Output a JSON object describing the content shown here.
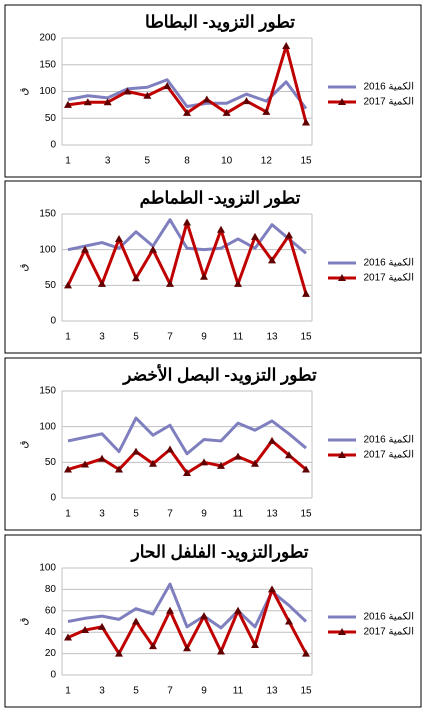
{
  "chart_data": [
    {
      "type": "line",
      "title": "تطور التزويد- البطاطا",
      "y_label": "ق",
      "categories": [
        "1",
        null,
        "3",
        null,
        "5",
        null,
        "8",
        null,
        "10",
        null,
        "12",
        null,
        "15"
      ],
      "ylim": [
        0,
        200
      ],
      "yticks": [
        0,
        50,
        100,
        150,
        200
      ],
      "series": [
        {
          "name": "الكمية 2016",
          "color": "#7f7fbf",
          "values": [
            85,
            92,
            88,
            105,
            108,
            122,
            72,
            78,
            78,
            95,
            82,
            118,
            68
          ]
        },
        {
          "name": "الكمية 2017",
          "color": "#c00000",
          "marker": "triangle",
          "values": [
            75,
            80,
            80,
            100,
            92,
            110,
            60,
            85,
            60,
            82,
            62,
            185,
            42
          ]
        }
      ]
    },
    {
      "type": "line",
      "title": "تطور التزويد- الطماطم",
      "y_label": "ق",
      "categories": [
        "1",
        null,
        "3",
        null,
        "5",
        null,
        "7",
        null,
        "9",
        null,
        "11",
        null,
        "13",
        null,
        "15"
      ],
      "ylim": [
        0,
        150
      ],
      "yticks": [
        0,
        50,
        100,
        150
      ],
      "series": [
        {
          "name": "الكمية 2016",
          "color": "#7f7fbf",
          "values": [
            100,
            105,
            110,
            102,
            125,
            105,
            142,
            102,
            100,
            102,
            115,
            102,
            135,
            115,
            95
          ]
        },
        {
          "name": "الكمية 2017",
          "color": "#c00000",
          "marker": "triangle",
          "values": [
            50,
            100,
            52,
            115,
            60,
            100,
            52,
            138,
            62,
            128,
            52,
            118,
            85,
            120,
            38
          ]
        }
      ]
    },
    {
      "type": "line",
      "title": "تطور التزويد- البصل الأخضر",
      "y_label": "ق",
      "categories": [
        "1",
        null,
        "3",
        null,
        "5",
        null,
        "7",
        null,
        "9",
        null,
        "11",
        null,
        "13",
        null,
        "15"
      ],
      "ylim": [
        0,
        150
      ],
      "yticks": [
        0,
        50,
        100,
        150
      ],
      "series": [
        {
          "name": "الكمية 2016",
          "color": "#7f7fbf",
          "values": [
            80,
            85,
            90,
            65,
            112,
            88,
            102,
            62,
            82,
            80,
            105,
            95,
            108,
            90,
            70
          ]
        },
        {
          "name": "الكمية 2017",
          "color": "#c00000",
          "marker": "triangle",
          "values": [
            40,
            47,
            55,
            40,
            65,
            48,
            68,
            35,
            50,
            45,
            58,
            48,
            80,
            60,
            40
          ]
        }
      ]
    },
    {
      "type": "line",
      "title": "تطورالتزويد- الفلفل الحار",
      "y_label": "ق",
      "categories": [
        "1",
        null,
        "3",
        null,
        "5",
        null,
        "7",
        null,
        "9",
        null,
        "11",
        null,
        "13",
        null,
        "15"
      ],
      "ylim": [
        0,
        100
      ],
      "yticks": [
        0,
        20,
        40,
        60,
        80,
        100
      ],
      "series": [
        {
          "name": "الكمية 2016",
          "color": "#7f7fbf",
          "values": [
            50,
            53,
            55,
            52,
            62,
            57,
            85,
            45,
            55,
            44,
            60,
            45,
            78,
            65,
            50
          ]
        },
        {
          "name": "الكمية 2017",
          "color": "#c00000",
          "marker": "triangle",
          "values": [
            35,
            42,
            45,
            20,
            50,
            27,
            60,
            25,
            55,
            22,
            60,
            28,
            80,
            50,
            20
          ]
        }
      ]
    }
  ]
}
